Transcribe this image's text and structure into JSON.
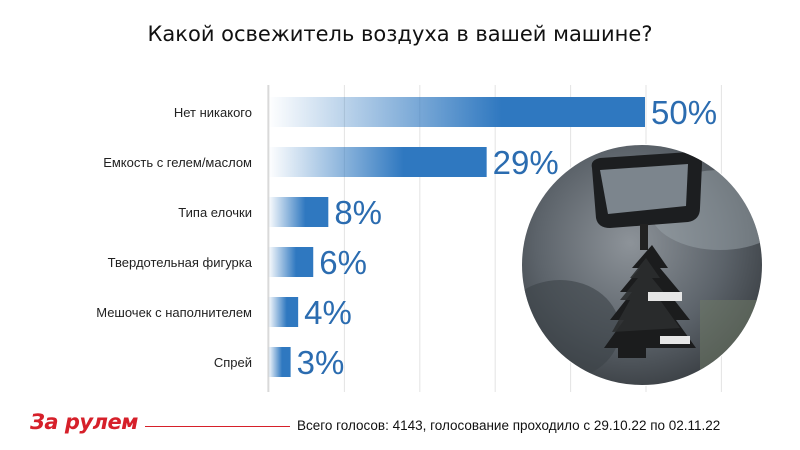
{
  "title": "Какой освежитель воздуха в вашей машине?",
  "footer": {
    "logo": "За рулем",
    "note": "Всего голосов: 4143, голосование проходило с 29.10.22 по 02.11.22"
  },
  "colors": {
    "bar": "#2f78c0",
    "value_text": "#2b6cb0",
    "grid": "#e3e3e3",
    "logo": "#d6202a"
  },
  "chart_data": {
    "type": "bar",
    "orientation": "horizontal",
    "title": "Какой освежитель воздуха в вашей машине?",
    "categories": [
      "Нет никакого",
      "Емкость с гелем/маслом",
      "Типа елочки",
      "Твердотельная фигурка",
      "Мешочек с наполнителем",
      "Спрей"
    ],
    "values": [
      50,
      29,
      8,
      6,
      4,
      3
    ],
    "value_labels": [
      "50%",
      "29%",
      "8%",
      "6%",
      "4%",
      "3%"
    ],
    "unit": "%",
    "xlim": [
      0,
      50
    ],
    "grid": true,
    "legend": "none"
  }
}
